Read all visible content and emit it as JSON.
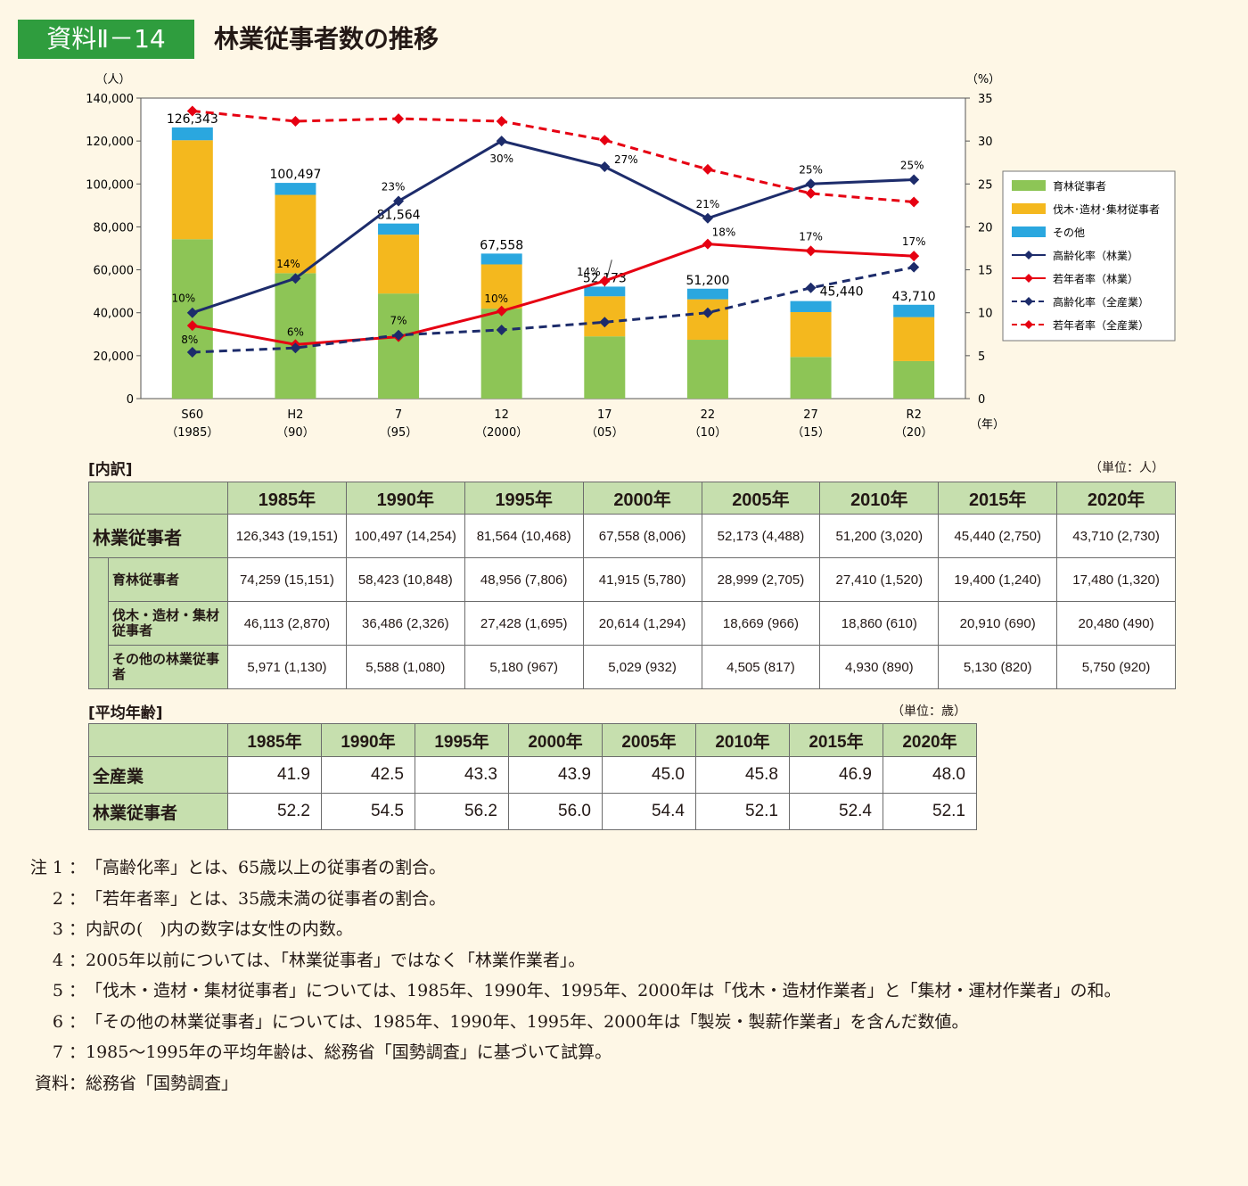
{
  "header": {
    "badge": "資料Ⅱ－14",
    "title": "林業従事者数の推移"
  },
  "chart_data": {
    "type": "bar+line",
    "categories": [
      [
        "S60",
        "（1985）"
      ],
      [
        "H2",
        "（90）"
      ],
      [
        "7",
        "（95）"
      ],
      [
        "12",
        "（2000）"
      ],
      [
        "17",
        "（05）"
      ],
      [
        "22",
        "（10）"
      ],
      [
        "27",
        "（15）"
      ],
      [
        "R2",
        "（20）"
      ]
    ],
    "x_unit": "（年）",
    "y_left": {
      "unit": "（人）",
      "ylim": [
        0,
        140000
      ],
      "ticks": [
        "0",
        "20,000",
        "40,000",
        "60,000",
        "80,000",
        "100,000",
        "120,000",
        "140,000"
      ]
    },
    "y_right": {
      "unit": "（%）",
      "ylim": [
        0,
        35
      ],
      "ticks": [
        "0",
        "5",
        "10",
        "15",
        "20",
        "25",
        "30",
        "35"
      ]
    },
    "bar_series": [
      {
        "name": "育林従事者",
        "color": "#8dc556",
        "values": [
          74259,
          58423,
          48956,
          41915,
          28999,
          27410,
          19400,
          17480
        ]
      },
      {
        "name": "伐木･造材･集材従事者",
        "color": "#f4b81e",
        "values": [
          46113,
          36486,
          27428,
          20614,
          18669,
          18860,
          20910,
          20480
        ]
      },
      {
        "name": "その他",
        "color": "#2aa7df",
        "values": [
          5971,
          5588,
          5180,
          5029,
          4505,
          4930,
          5130,
          5750
        ]
      }
    ],
    "totals": [
      "126,343",
      "100,497",
      "81,564",
      "67,558",
      "52,173",
      "51,200",
      "45,440",
      "43,710"
    ],
    "line_series": [
      {
        "name": "高齢化率（林業）",
        "color": "#1d2c6b",
        "dash": false,
        "values": [
          10,
          14,
          23,
          30,
          27,
          21,
          25,
          25.5
        ],
        "labels": [
          "10%",
          "14%",
          "23%",
          "30%",
          "27%",
          "21%",
          "25%",
          "25%"
        ]
      },
      {
        "name": "若年者率（林業）",
        "color": "#e60012",
        "dash": false,
        "values": [
          8.5,
          6.3,
          7.2,
          10.2,
          13.7,
          18,
          17.2,
          16.6
        ],
        "labels": [
          "8%",
          "6%",
          "7%",
          "10%",
          "14%",
          "18%",
          "17%",
          "17%"
        ]
      },
      {
        "name": "高齢化率（全産業）",
        "color": "#1d2c6b",
        "dash": true,
        "values": [
          5.4,
          5.9,
          7.4,
          8,
          8.9,
          10,
          12.9,
          15.3
        ],
        "labels": []
      },
      {
        "name": "若年者率（全産業）",
        "color": "#e60012",
        "dash": true,
        "values": [
          33.5,
          32.3,
          32.6,
          32.3,
          30.1,
          26.7,
          23.9,
          22.9
        ],
        "labels": []
      }
    ]
  },
  "breakdown": {
    "section": "[内訳]",
    "unit": "（単位：人）",
    "years": [
      "1985年",
      "1990年",
      "1995年",
      "2000年",
      "2005年",
      "2010年",
      "2015年",
      "2020年"
    ],
    "rows": [
      {
        "label": "林業従事者",
        "values": [
          "126,343 (19,151)",
          "100,497 (14,254)",
          "81,564 (10,468)",
          "67,558 (8,006)",
          "52,173 (4,488)",
          "51,200 (3,020)",
          "45,440 (2,750)",
          "43,710 (2,730)"
        ]
      },
      {
        "label": "育林従事者",
        "values": [
          "74,259 (15,151)",
          "58,423 (10,848)",
          "48,956 (7,806)",
          "41,915 (5,780)",
          "28,999 (2,705)",
          "27,410 (1,520)",
          "19,400 (1,240)",
          "17,480 (1,320)"
        ]
      },
      {
        "label": "伐木・造材・集材従事者",
        "values": [
          "46,113 (2,870)",
          "36,486 (2,326)",
          "27,428 (1,695)",
          "20,614 (1,294)",
          "18,669 (966)",
          "18,860 (610)",
          "20,910 (690)",
          "20,480 (490)"
        ]
      },
      {
        "label": "その他の林業従事者",
        "values": [
          "5,971 (1,130)",
          "5,588 (1,080)",
          "5,180 (967)",
          "5,029 (932)",
          "4,505 (817)",
          "4,930 (890)",
          "5,130 (820)",
          "5,750 (920)"
        ]
      }
    ]
  },
  "avg_age": {
    "section": "[平均年齢]",
    "unit": "（単位：歳）",
    "years": [
      "1985年",
      "1990年",
      "1995年",
      "2000年",
      "2005年",
      "2010年",
      "2015年",
      "2020年"
    ],
    "rows": [
      {
        "label": "全産業",
        "values": [
          "41.9",
          "42.5",
          "43.3",
          "43.9",
          "45.0",
          "45.8",
          "46.9",
          "48.0"
        ]
      },
      {
        "label": "林業従事者",
        "values": [
          "52.2",
          "54.5",
          "56.2",
          "56.0",
          "54.4",
          "52.1",
          "52.4",
          "52.1"
        ]
      }
    ]
  },
  "notes": [
    {
      "prefix": "注 1 ：",
      "text": "「高齢化率」とは、65歳以上の従事者の割合。"
    },
    {
      "prefix": "2 ：",
      "text": "「若年者率」とは、35歳未満の従事者の割合。"
    },
    {
      "prefix": "3 ：",
      "text": "内訳の(　)内の数字は女性の内数。"
    },
    {
      "prefix": "4 ：",
      "text": "2005年以前については、「林業従事者」ではなく「林業作業者」。"
    },
    {
      "prefix": "5 ：",
      "text": "「伐木・造材・集材従事者」については、1985年、1990年、1995年、2000年は「伐木・造材作業者」と「集材・運材作業者」の和。"
    },
    {
      "prefix": "6 ：",
      "text": "「その他の林業従事者」については、1985年、1990年、1995年、2000年は「製炭・製薪作業者」を含んだ数値。"
    },
    {
      "prefix": "7 ：",
      "text": "1985～1995年の平均年齢は、総務省「国勢調査」に基づいて試算。"
    },
    {
      "prefix": "資料：",
      "text": "総務省「国勢調査」"
    }
  ]
}
